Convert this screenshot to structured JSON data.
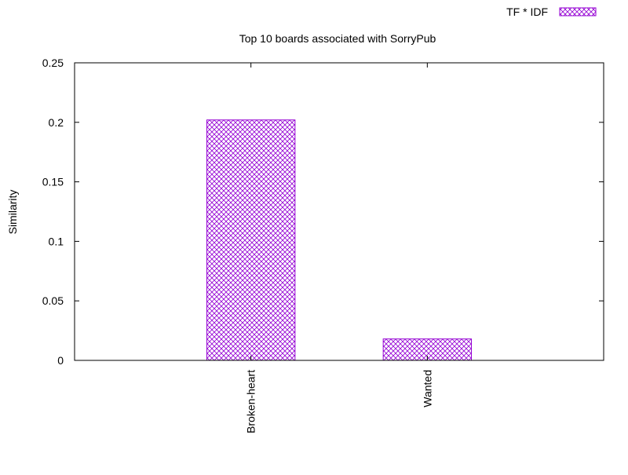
{
  "chart_data": {
    "type": "bar",
    "title": "Top 10 boards associated with SorryPub",
    "xlabel": "",
    "ylabel": "Similarity",
    "categories": [
      "Broken-heart",
      "Wanted"
    ],
    "series": [
      {
        "name": "TF * IDF",
        "values": [
          0.202,
          0.018
        ]
      }
    ],
    "ylim": [
      0,
      0.25
    ],
    "yticks": [
      0,
      0.05,
      0.1,
      0.15,
      0.2,
      0.25
    ],
    "ytick_labels": [
      "0",
      "0.05",
      "0.1",
      "0.15",
      "0.2",
      "0.25"
    ],
    "x_slots": 3,
    "legend_position": "top-right",
    "grid": false,
    "bar_color": "#9400d3",
    "bar_fill_pattern": "crosshatch"
  }
}
